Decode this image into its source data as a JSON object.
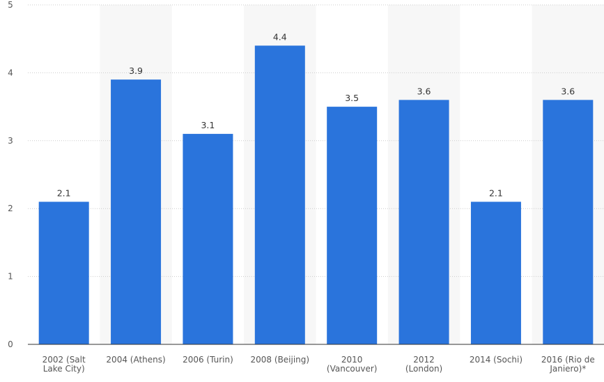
{
  "chart_data": {
    "type": "bar",
    "categories": [
      "2002 (Salt\nLake City)",
      "2004 (Athens)",
      "2006 (Turin)",
      "2008 (Beijing)",
      "2010\n(Vancouver)",
      "2012\n(London)",
      "2014 (Sochi)",
      "2016 (Rio de\nJaniero)*"
    ],
    "values": [
      2.1,
      3.9,
      3.1,
      4.4,
      3.5,
      3.6,
      2.1,
      3.6
    ],
    "color": "#2a74dc",
    "ylim": [
      0,
      5
    ],
    "yticks": [
      0,
      1,
      2,
      3,
      4,
      5
    ],
    "grid": true
  }
}
